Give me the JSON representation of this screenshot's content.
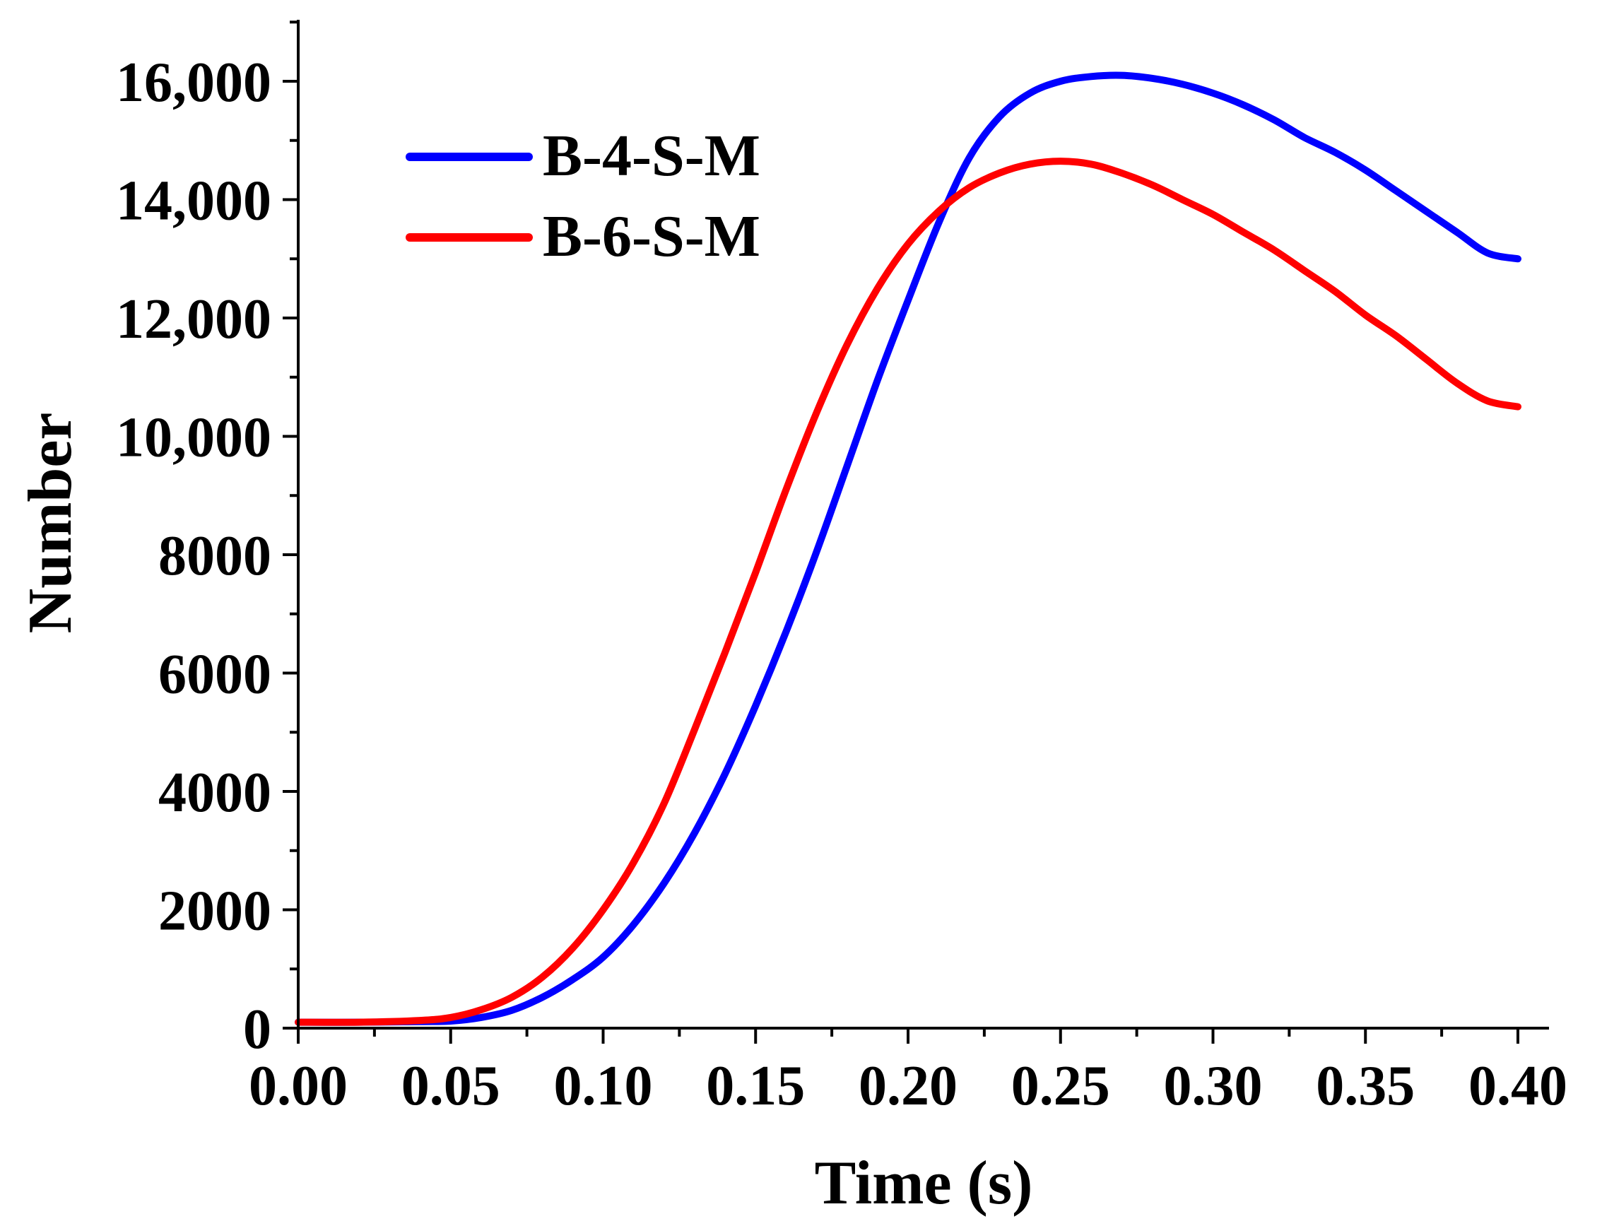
{
  "chart_data": {
    "type": "line",
    "title": "",
    "xlabel": "Time (s)",
    "ylabel": "Number",
    "xlim": [
      0,
      0.4
    ],
    "ylim": [
      0,
      17000
    ],
    "x_ticks": [
      0,
      0.05,
      0.1,
      0.15,
      0.2,
      0.25,
      0.3,
      0.35,
      0.4
    ],
    "x_tick_labels": [
      "0.00",
      "0.05",
      "0.10",
      "0.15",
      "0.20",
      "0.25",
      "0.30",
      "0.35",
      "0.40"
    ],
    "x_minor_step": 0.025,
    "y_ticks": [
      0,
      2000,
      4000,
      6000,
      8000,
      10000,
      12000,
      14000,
      16000
    ],
    "y_tick_labels": [
      "0",
      "2000",
      "4000",
      "6000",
      "8000",
      "10,000",
      "12,000",
      "14,000",
      "16,000"
    ],
    "y_minor_step": 1000,
    "grid": false,
    "legend_position": "top-left",
    "series": [
      {
        "name": "B-4-S-M",
        "color": "#0000ff",
        "x": [
          0,
          0.02,
          0.04,
          0.05,
          0.06,
          0.07,
          0.08,
          0.09,
          0.1,
          0.11,
          0.12,
          0.13,
          0.14,
          0.15,
          0.16,
          0.17,
          0.18,
          0.19,
          0.2,
          0.21,
          0.22,
          0.23,
          0.24,
          0.25,
          0.26,
          0.27,
          0.28,
          0.29,
          0.3,
          0.31,
          0.32,
          0.33,
          0.34,
          0.35,
          0.36,
          0.37,
          0.38,
          0.39,
          0.4
        ],
        "values": [
          100,
          100,
          110,
          120,
          180,
          300,
          520,
          820,
          1200,
          1750,
          2450,
          3300,
          4300,
          5450,
          6700,
          8050,
          9500,
          10950,
          12300,
          13600,
          14700,
          15400,
          15800,
          16000,
          16080,
          16100,
          16050,
          15950,
          15800,
          15600,
          15350,
          15050,
          14800,
          14500,
          14150,
          13800,
          13450,
          13100,
          13000
        ]
      },
      {
        "name": "B-6-S-M",
        "color": "#ff0000",
        "x": [
          0,
          0.02,
          0.04,
          0.05,
          0.06,
          0.07,
          0.08,
          0.09,
          0.1,
          0.11,
          0.12,
          0.13,
          0.14,
          0.15,
          0.16,
          0.17,
          0.18,
          0.19,
          0.2,
          0.21,
          0.22,
          0.23,
          0.24,
          0.25,
          0.26,
          0.27,
          0.28,
          0.29,
          0.3,
          0.31,
          0.32,
          0.33,
          0.34,
          0.35,
          0.36,
          0.37,
          0.38,
          0.39,
          0.4
        ],
        "values": [
          100,
          100,
          130,
          180,
          310,
          520,
          860,
          1350,
          2000,
          2800,
          3800,
          5050,
          6350,
          7700,
          9100,
          10400,
          11550,
          12500,
          13250,
          13800,
          14200,
          14450,
          14600,
          14650,
          14600,
          14450,
          14250,
          14000,
          13750,
          13450,
          13150,
          12800,
          12450,
          12050,
          11700,
          11300,
          10900,
          10600,
          10500
        ]
      }
    ]
  }
}
